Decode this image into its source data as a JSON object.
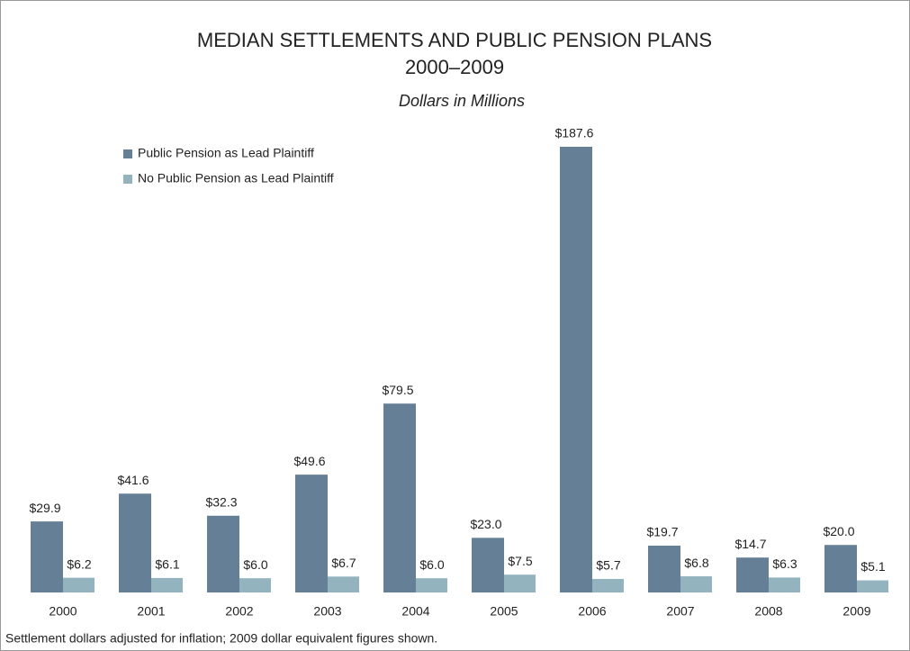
{
  "chart_data": {
    "type": "bar",
    "title": "MEDIAN SETTLEMENTS AND PUBLIC PENSION PLANS",
    "subtitle": "2000–2009",
    "unit_label": "Dollars in Millions",
    "note": "Settlement dollars adjusted for inflation; 2009 dollar equivalent figures shown.",
    "categories": [
      "2000",
      "2001",
      "2002",
      "2003",
      "2004",
      "2005",
      "2006",
      "2007",
      "2008",
      "2009"
    ],
    "series": [
      {
        "name": "Public Pension as Lead Plaintiff",
        "color": "#647f96",
        "values": [
          29.9,
          41.6,
          32.3,
          49.6,
          79.5,
          23.0,
          187.6,
          19.7,
          14.7,
          20.0
        ],
        "value_labels": [
          "$29.9",
          "$41.6",
          "$32.3",
          "$49.6",
          "$79.5",
          "$23.0",
          "$187.6",
          "$19.7",
          "$14.7",
          "$20.0"
        ]
      },
      {
        "name": "No Public Pension as Lead Plaintiff",
        "color": "#93b3bf",
        "values": [
          6.2,
          6.1,
          6.0,
          6.7,
          6.0,
          7.5,
          5.7,
          6.8,
          6.3,
          5.1
        ],
        "value_labels": [
          "$6.2",
          "$6.1",
          "$6.0",
          "$6.7",
          "$6.0",
          "$7.5",
          "$5.7",
          "$6.8",
          "$6.3",
          "$5.1"
        ]
      }
    ],
    "legend": "top-left"
  }
}
